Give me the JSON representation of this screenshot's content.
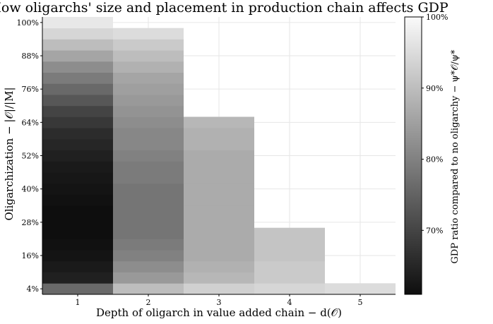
{
  "chart_data": {
    "type": "heatmap",
    "title": "How oligarchs' size and placement in production chain affects GDP",
    "xlabel": "Depth of oligarch in value added chain − d(𝒪)",
    "ylabel": "Oligarchization − |𝒪|/|M|",
    "colorbar_label": "GDP ratio compared to no oligarchy − ψ*𝒪/ψ*",
    "x_ticks": [
      "1",
      "2",
      "3",
      "4",
      "5"
    ],
    "y_ticks": [
      "4%",
      "16%",
      "28%",
      "40%",
      "52%",
      "64%",
      "76%",
      "88%",
      "100%"
    ],
    "colorbar_ticks": [
      "70%",
      "80%",
      "90%",
      "100%"
    ],
    "colorbar_range": [
      0.61,
      1.0
    ],
    "colormap": "greys (black = low, white = high)",
    "grid": true,
    "y_levels_percent": [
      4,
      8,
      12,
      16,
      20,
      24,
      28,
      32,
      36,
      40,
      44,
      48,
      52,
      56,
      60,
      64,
      68,
      72,
      76,
      80,
      84,
      88,
      92,
      96,
      100
    ],
    "columns": [
      {
        "depth": 1,
        "values": [
          0.76,
          0.64,
          0.63,
          0.62,
          0.615,
          0.61,
          0.61,
          0.61,
          0.615,
          0.62,
          0.625,
          0.63,
          0.64,
          0.65,
          0.66,
          0.68,
          0.7,
          0.73,
          0.76,
          0.79,
          0.82,
          0.86,
          0.9,
          0.94,
          0.97
        ]
      },
      {
        "depth": 2,
        "values": [
          0.9,
          0.84,
          0.82,
          0.8,
          0.79,
          0.78,
          0.78,
          0.78,
          0.78,
          0.78,
          0.79,
          0.79,
          0.8,
          0.81,
          0.81,
          0.82,
          0.83,
          0.84,
          0.85,
          0.86,
          0.88,
          0.9,
          0.92,
          0.95
        ]
      },
      {
        "depth": 3,
        "values": [
          0.93,
          0.89,
          0.88,
          0.87,
          0.87,
          0.87,
          0.87,
          0.87,
          0.87,
          0.87,
          0.87,
          0.87,
          0.87,
          0.88,
          0.88,
          0.89
        ]
      },
      {
        "depth": 4,
        "values": [
          0.94,
          0.92,
          0.92,
          0.91,
          0.91,
          0.91
        ]
      },
      {
        "depth": 5,
        "values": [
          0.95
        ]
      }
    ]
  }
}
